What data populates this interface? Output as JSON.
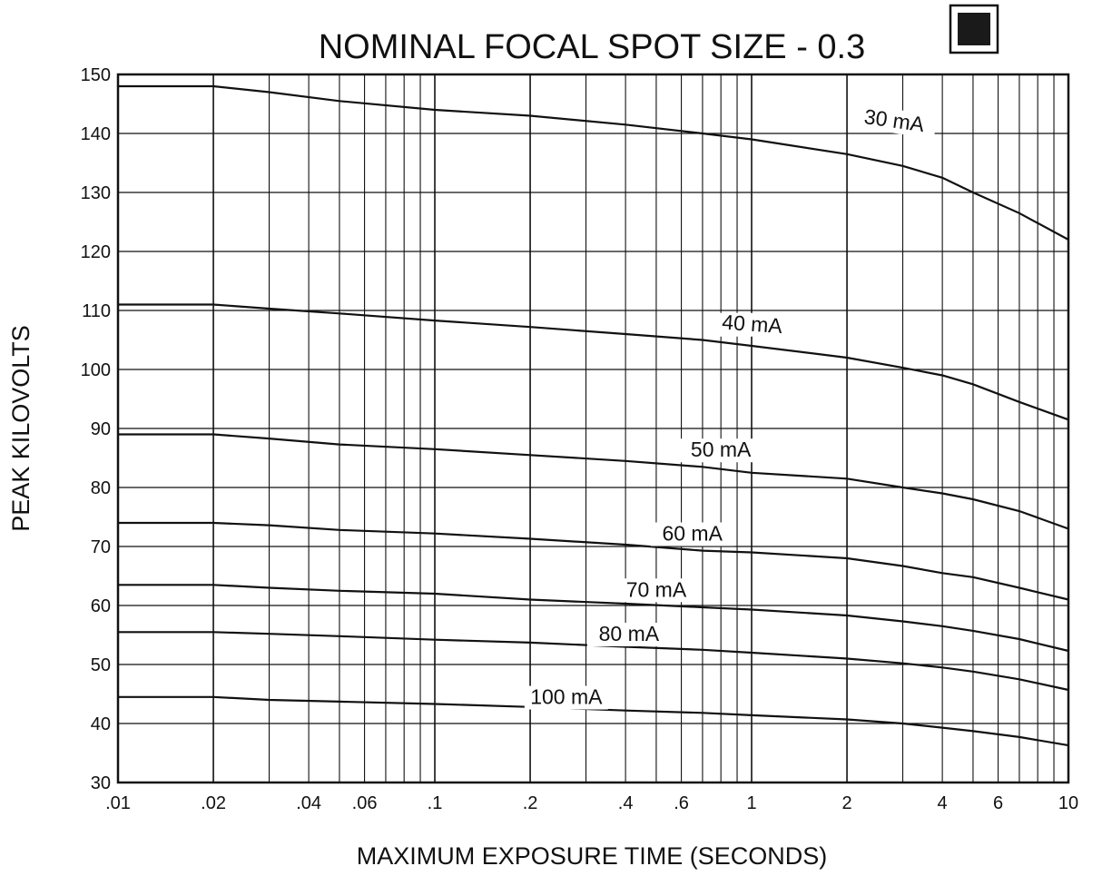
{
  "chart_data": {
    "type": "line",
    "title": "NOMINAL FOCAL SPOT SIZE - 0.3",
    "xlabel": "MAXIMUM EXPOSURE TIME (SECONDS)",
    "ylabel": "PEAK KILOVOLTS",
    "x_scale": "log",
    "xlim": [
      0.01,
      10
    ],
    "ylim": [
      30,
      150
    ],
    "grid": true,
    "legend": "none",
    "x_tick_labels": [
      {
        "value": 0.01,
        "label": ".01"
      },
      {
        "value": 0.02,
        "label": ".02"
      },
      {
        "value": 0.04,
        "label": ".04"
      },
      {
        "value": 0.06,
        "label": ".06"
      },
      {
        "value": 0.1,
        "label": ".1"
      },
      {
        "value": 0.2,
        "label": ".2"
      },
      {
        "value": 0.4,
        "label": ".4"
      },
      {
        "value": 0.6,
        "label": ".6"
      },
      {
        "value": 1,
        "label": "1"
      },
      {
        "value": 2,
        "label": "2"
      },
      {
        "value": 4,
        "label": "4"
      },
      {
        "value": 6,
        "label": "6"
      },
      {
        "value": 10,
        "label": "10"
      }
    ],
    "y_ticks": [
      30,
      40,
      50,
      60,
      70,
      80,
      90,
      100,
      110,
      120,
      130,
      140,
      150
    ],
    "series": [
      {
        "name": "30 mA",
        "label_at": {
          "x": 2.8,
          "y": 141
        },
        "points": [
          [
            0.01,
            148
          ],
          [
            0.02,
            148
          ],
          [
            0.03,
            147
          ],
          [
            0.05,
            145.5
          ],
          [
            0.1,
            144
          ],
          [
            0.2,
            143
          ],
          [
            0.4,
            141.5
          ],
          [
            0.7,
            140
          ],
          [
            1,
            139
          ],
          [
            2,
            136.5
          ],
          [
            3,
            134.5
          ],
          [
            4,
            132.5
          ],
          [
            5,
            130
          ],
          [
            7,
            126.5
          ],
          [
            10,
            122
          ]
        ]
      },
      {
        "name": "40 mA",
        "label_at": {
          "x": 1.0,
          "y": 106.5
        },
        "points": [
          [
            0.01,
            111
          ],
          [
            0.02,
            111
          ],
          [
            0.03,
            110.3
          ],
          [
            0.05,
            109.5
          ],
          [
            0.1,
            108.3
          ],
          [
            0.2,
            107.2
          ],
          [
            0.4,
            106
          ],
          [
            0.7,
            105
          ],
          [
            1,
            104
          ],
          [
            2,
            102
          ],
          [
            3,
            100.3
          ],
          [
            4,
            99
          ],
          [
            5,
            97.5
          ],
          [
            7,
            94.5
          ],
          [
            10,
            91.5
          ]
        ]
      },
      {
        "name": "50 mA",
        "label_at": {
          "x": 0.8,
          "y": 85.2
        },
        "points": [
          [
            0.01,
            89
          ],
          [
            0.02,
            89
          ],
          [
            0.03,
            88.3
          ],
          [
            0.05,
            87.3
          ],
          [
            0.1,
            86.5
          ],
          [
            0.2,
            85.5
          ],
          [
            0.4,
            84.5
          ],
          [
            0.7,
            83.5
          ],
          [
            1,
            82.5
          ],
          [
            2,
            81.5
          ],
          [
            3,
            80
          ],
          [
            4,
            79
          ],
          [
            5,
            78
          ],
          [
            7,
            76
          ],
          [
            10,
            73
          ]
        ]
      },
      {
        "name": "60 mA",
        "label_at": {
          "x": 0.65,
          "y": 71
        },
        "points": [
          [
            0.01,
            74
          ],
          [
            0.02,
            74
          ],
          [
            0.03,
            73.6
          ],
          [
            0.05,
            72.8
          ],
          [
            0.1,
            72.2
          ],
          [
            0.2,
            71.3
          ],
          [
            0.4,
            70.3
          ],
          [
            0.7,
            69.3
          ],
          [
            1,
            69
          ],
          [
            2,
            68
          ],
          [
            3,
            66.7
          ],
          [
            4,
            65.5
          ],
          [
            5,
            64.8
          ],
          [
            7,
            63
          ],
          [
            10,
            61
          ]
        ]
      },
      {
        "name": "70 mA",
        "label_at": {
          "x": 0.5,
          "y": 61.5
        },
        "points": [
          [
            0.01,
            63.5
          ],
          [
            0.02,
            63.5
          ],
          [
            0.03,
            63
          ],
          [
            0.05,
            62.5
          ],
          [
            0.1,
            62
          ],
          [
            0.2,
            61
          ],
          [
            0.4,
            60.3
          ],
          [
            0.7,
            59.7
          ],
          [
            1,
            59.3
          ],
          [
            2,
            58.3
          ],
          [
            3,
            57.3
          ],
          [
            4,
            56.5
          ],
          [
            5,
            55.7
          ],
          [
            7,
            54.3
          ],
          [
            10,
            52.3
          ]
        ]
      },
      {
        "name": "80 mA",
        "label_at": {
          "x": 0.41,
          "y": 54
        },
        "points": [
          [
            0.01,
            55.5
          ],
          [
            0.02,
            55.5
          ],
          [
            0.03,
            55.2
          ],
          [
            0.05,
            54.8
          ],
          [
            0.1,
            54.2
          ],
          [
            0.2,
            53.7
          ],
          [
            0.4,
            53
          ],
          [
            0.7,
            52.5
          ],
          [
            1,
            52
          ],
          [
            2,
            51
          ],
          [
            3,
            50.2
          ],
          [
            4,
            49.5
          ],
          [
            5,
            48.8
          ],
          [
            7,
            47.5
          ],
          [
            10,
            45.7
          ]
        ]
      },
      {
        "name": "100 mA",
        "label_at": {
          "x": 0.26,
          "y": 43.3
        },
        "points": [
          [
            0.01,
            44.5
          ],
          [
            0.02,
            44.5
          ],
          [
            0.03,
            44
          ],
          [
            0.05,
            43.7
          ],
          [
            0.1,
            43.3
          ],
          [
            0.2,
            42.8
          ],
          [
            0.4,
            42.2
          ],
          [
            0.7,
            41.8
          ],
          [
            1,
            41.4
          ],
          [
            2,
            40.7
          ],
          [
            3,
            40
          ],
          [
            4,
            39.3
          ],
          [
            5,
            38.7
          ],
          [
            7,
            37.7
          ],
          [
            10,
            36.3
          ]
        ]
      }
    ]
  }
}
